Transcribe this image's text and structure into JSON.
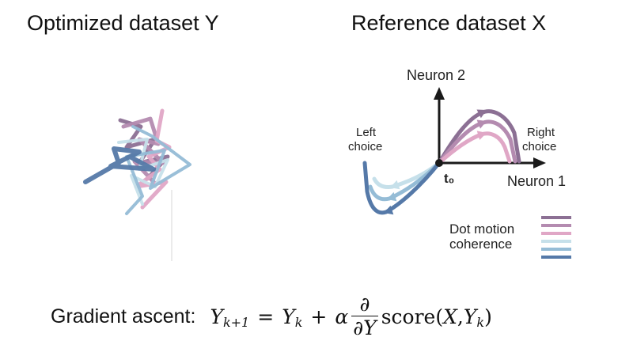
{
  "left_panel": {
    "title": "Optimized dataset Y"
  },
  "right_panel": {
    "title": "Reference dataset X",
    "axis_y_label": "Neuron 2",
    "axis_x_label": "Neuron 1",
    "origin_label": "t₀",
    "left_choice_label": [
      "Left",
      "choice"
    ],
    "right_choice_label": [
      "Right",
      "choice"
    ],
    "legend_title": [
      "Dot motion",
      "coherence"
    ]
  },
  "colors": {
    "coherence": [
      "#8c7094",
      "#b48bb0",
      "#e0a7c6",
      "#c6e0ea",
      "#95bcd6",
      "#5579a8"
    ],
    "axis": "#1a1a1a"
  },
  "equation": {
    "prefix": "Gradient ascent:",
    "lhs": "Y",
    "lhs_sub": "k+1",
    "eq": "=",
    "term1": "Y",
    "term1_sub": "k",
    "plus": "+",
    "alpha": "α",
    "frac_num": "∂",
    "frac_den": "∂Y",
    "func": "score(",
    "arg1": "X",
    "comma": ", ",
    "arg2": "Y",
    "arg2_sub": "k",
    "close": ")"
  }
}
